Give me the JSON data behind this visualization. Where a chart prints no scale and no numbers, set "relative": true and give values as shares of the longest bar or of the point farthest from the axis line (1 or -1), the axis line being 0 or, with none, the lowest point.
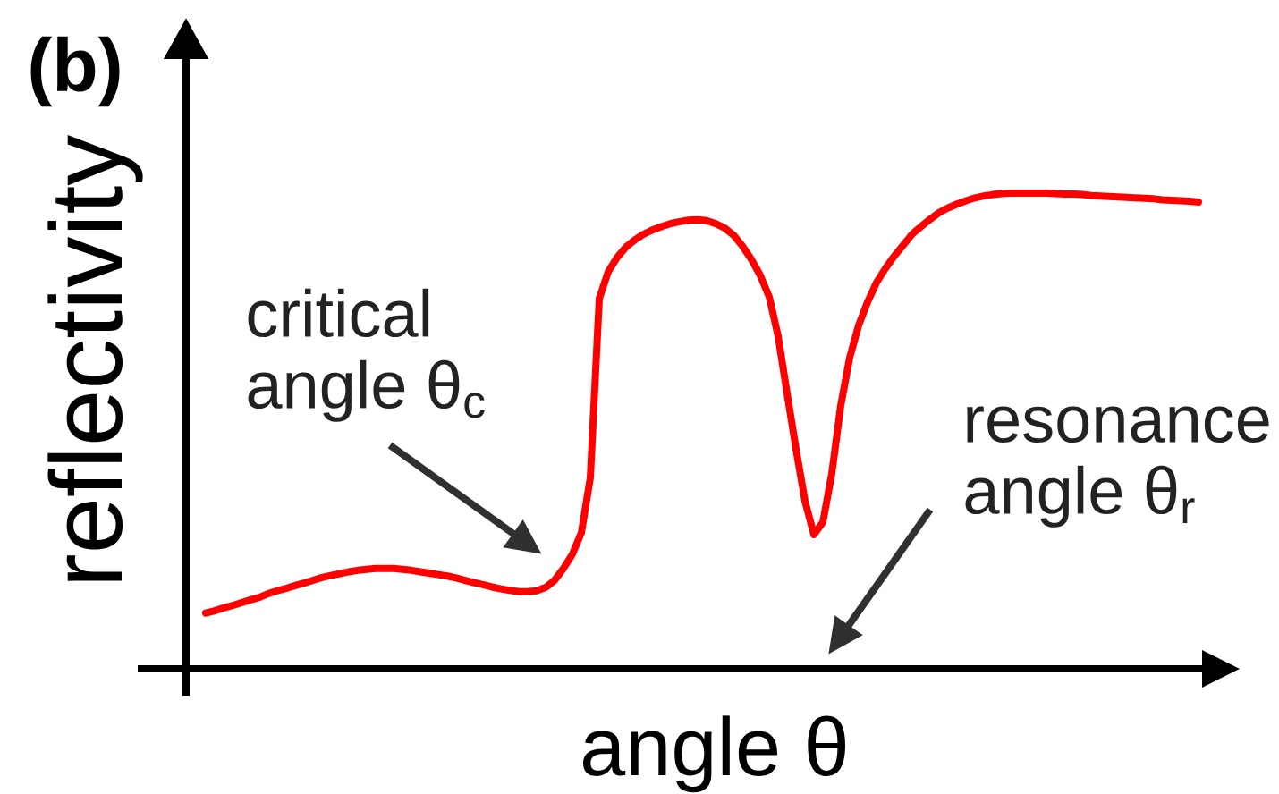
{
  "chart_data": {
    "type": "line",
    "title": "(b)",
    "xlabel": "angle θ",
    "ylabel": "reflectivity",
    "annotations": [
      "critical angle θ$_{c}$",
      "resonance angle θ$_{r}$"
    ],
    "relative": true,
    "marker": "none",
    "line_style": "solid",
    "color": "#ff0000",
    "categories": [
      null,
      null,
      null,
      null,
      null,
      null,
      null,
      null,
      null,
      null,
      null,
      null,
      null,
      null,
      null,
      null,
      null,
      null,
      null,
      null,
      null,
      null,
      null,
      null,
      null,
      null,
      null,
      null,
      null,
      null,
      null,
      null,
      null,
      null,
      null,
      null,
      null,
      null,
      null,
      null,
      null,
      null,
      null,
      null,
      null,
      null,
      null,
      null,
      null,
      null,
      null,
      null,
      null,
      null,
      null,
      null,
      null,
      null,
      null,
      null,
      null,
      null,
      null,
      null,
      null,
      null,
      null,
      null,
      null,
      null,
      null,
      null,
      null,
      null,
      null,
      null,
      null,
      null,
      null,
      null,
      null,
      null,
      null,
      null,
      null,
      null,
      null,
      null,
      null,
      null,
      null,
      null,
      null,
      null,
      null,
      null,
      null,
      null,
      null,
      null,
      null,
      null,
      null,
      null,
      null,
      null,
      null,
      null,
      null,
      null,
      null,
      null
    ],
    "values": [
      0.117,
      0.122,
      0.128,
      0.133,
      0.139,
      0.145,
      0.15,
      0.158,
      0.164,
      0.169,
      0.175,
      0.18,
      0.186,
      0.192,
      0.196,
      0.2,
      0.204,
      0.207,
      0.209,
      0.211,
      0.211,
      0.211,
      0.209,
      0.207,
      0.204,
      0.201,
      0.198,
      0.195,
      0.191,
      0.186,
      0.181,
      0.177,
      0.172,
      0.168,
      0.165,
      0.162,
      0.162,
      0.164,
      0.171,
      0.186,
      0.211,
      0.241,
      0.286,
      0.402,
      0.778,
      0.835,
      0.865,
      0.887,
      0.902,
      0.914,
      0.923,
      0.93,
      0.936,
      0.94,
      0.943,
      0.944,
      0.942,
      0.936,
      0.927,
      0.912,
      0.889,
      0.861,
      0.827,
      0.782,
      0.699,
      0.579,
      0.462,
      0.353,
      0.282,
      0.308,
      0.41,
      0.553,
      0.654,
      0.722,
      0.771,
      0.812,
      0.842,
      0.868,
      0.891,
      0.914,
      0.93,
      0.945,
      0.959,
      0.969,
      0.977,
      0.984,
      0.99,
      0.994,
      0.997,
      0.999,
      1,
      1,
      1,
      1,
      1,
      0.999,
      0.998,
      0.998,
      0.997,
      0.995,
      0.994,
      0.993,
      0.992,
      0.991,
      0.99,
      0.989,
      0.988,
      0.986,
      0.985,
      0.984,
      0.983,
      0.981
    ]
  }
}
